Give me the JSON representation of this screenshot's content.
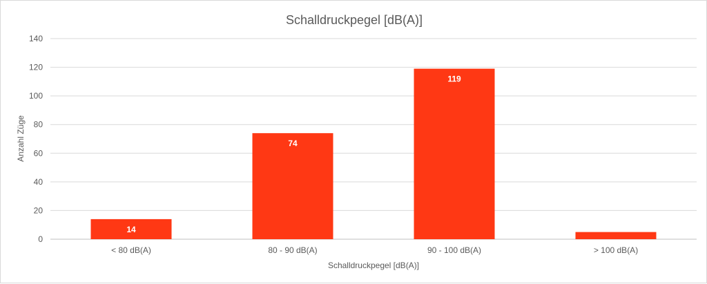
{
  "chart_data": {
    "type": "bar",
    "title": "Schalldruckpegel  [dB(A)]",
    "xlabel": "Schalldruckpegel [dB(A)]",
    "ylabel": "Anzahl Züge",
    "categories": [
      "< 80 dB(A)",
      "80 - 90 dB(A)",
      "90 - 100 dB(A)",
      "> 100 dB(A)"
    ],
    "values": [
      14,
      74,
      119,
      5
    ],
    "data_labels": [
      "14",
      "74",
      "119",
      ""
    ],
    "ylim": [
      0,
      140
    ],
    "yticks": [
      0,
      20,
      40,
      60,
      80,
      100,
      120,
      140
    ],
    "grid": true,
    "legend": "none",
    "bar_color": "#ff3814"
  }
}
